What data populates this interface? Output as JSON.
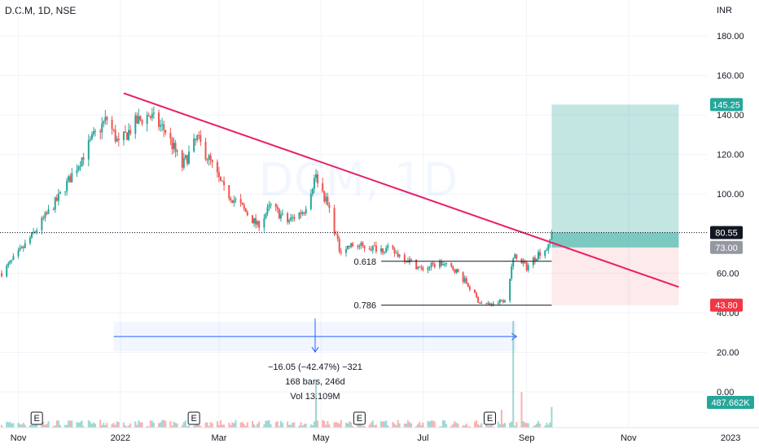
{
  "header": {
    "symbol_line": "D.C.M, 1D, NSE"
  },
  "watermark": "DCM, 1D",
  "currency_label": "INR",
  "colors": {
    "up": "#26a69a",
    "down": "#ef5350",
    "trendline": "#e91e63",
    "target_zone": "#26a69a",
    "stop_zone": "#ef5350",
    "measure": "#2962ff"
  },
  "chart_data": {
    "type": "candlestick",
    "interval": "1D",
    "exchange": "NSE",
    "ylim": [
      0,
      195
    ],
    "y_ticks": [
      180.0,
      160.0,
      140.0,
      120.0,
      100.0,
      80.0,
      60.0,
      40.0,
      20.0,
      0.0
    ],
    "y_tick_labels": [
      "180.00",
      "160.00",
      "140.00",
      "120.00",
      "100.00",
      "80.00",
      "60.00",
      "40.00",
      "20.00",
      "0.00"
    ],
    "x_ticks": [
      {
        "label": "Nov",
        "date": "2021-11-01"
      },
      {
        "label": "2022",
        "date": "2022-01-01"
      },
      {
        "label": "Mar",
        "date": "2022-03-01"
      },
      {
        "label": "May",
        "date": "2022-05-01"
      },
      {
        "label": "Jul",
        "date": "2022-07-01"
      },
      {
        "label": "Sep",
        "date": "2022-09-01"
      },
      {
        "label": "Nov",
        "date": "2022-11-01"
      },
      {
        "label": "2023",
        "date": "2023-01-01"
      }
    ],
    "x_range": [
      "2021-10-21",
      "2023-01-18"
    ],
    "price_path": [
      [
        "2021-10-22",
        60
      ],
      [
        "2021-10-28",
        66
      ],
      [
        "2021-11-04",
        73
      ],
      [
        "2021-11-15",
        86
      ],
      [
        "2021-11-25",
        98
      ],
      [
        "2021-12-06",
        114
      ],
      [
        "2021-12-16",
        129
      ],
      [
        "2021-12-24",
        138
      ],
      [
        "2021-12-31",
        125
      ],
      [
        "2022-01-10",
        136
      ],
      [
        "2022-01-18",
        140
      ],
      [
        "2022-01-28",
        132
      ],
      [
        "2022-02-07",
        114
      ],
      [
        "2022-02-16",
        128
      ],
      [
        "2022-02-24",
        116
      ],
      [
        "2022-03-04",
        102
      ],
      [
        "2022-03-14",
        94
      ],
      [
        "2022-03-24",
        84
      ],
      [
        "2022-04-01",
        94
      ],
      [
        "2022-04-11",
        86
      ],
      [
        "2022-04-21",
        92
      ],
      [
        "2022-04-28",
        110
      ],
      [
        "2022-05-06",
        92
      ],
      [
        "2022-05-12",
        72
      ],
      [
        "2022-05-20",
        74
      ],
      [
        "2022-05-31",
        73
      ],
      [
        "2022-06-10",
        72
      ],
      [
        "2022-06-20",
        68
      ],
      [
        "2022-06-30",
        62
      ],
      [
        "2022-07-11",
        65
      ],
      [
        "2022-07-20",
        62
      ],
      [
        "2022-07-27",
        55
      ],
      [
        "2022-08-04",
        45
      ],
      [
        "2022-08-12",
        44
      ],
      [
        "2022-08-19",
        47
      ],
      [
        "2022-08-25",
        70
      ],
      [
        "2022-09-01",
        63
      ],
      [
        "2022-09-08",
        70
      ],
      [
        "2022-09-14",
        73
      ],
      [
        "2022-09-16",
        80.55
      ]
    ],
    "ohlc_note": "Daily candles from ~Oct 2021 to mid Sep 2022; peak near 145 in Jan 2022, low near 43.8 in Aug 2022.",
    "last_price": 80.55,
    "last_volume_label": "487.662K",
    "volume_max": 36,
    "volume_spikes": [
      {
        "date": "2022-04-28",
        "value": 16
      },
      {
        "date": "2022-08-17",
        "value": 6
      },
      {
        "date": "2022-08-24",
        "value": 36
      },
      {
        "date": "2022-08-29",
        "value": 12
      },
      {
        "date": "2022-09-16",
        "value": 7
      }
    ],
    "earnings_markers": [
      "2021-11-12",
      "2022-02-14",
      "2022-05-24",
      "2022-08-10"
    ],
    "earnings_label": "E",
    "trendline": {
      "from": {
        "date": "2022-01-03",
        "price": 151
      },
      "to": {
        "date": "2022-12-01",
        "price": 53
      }
    },
    "fib_levels": [
      {
        "label": "0.618",
        "price": 66,
        "from": "2022-06-06",
        "to": "2022-09-16"
      },
      {
        "label": "0.786",
        "price": 43.8,
        "from": "2022-06-06",
        "to": "2022-09-16"
      }
    ],
    "position": {
      "entry": 73.0,
      "target": 145.25,
      "stop": 43.8,
      "from_date": "2022-09-16",
      "to_date": "2022-12-01"
    },
    "price_badges": [
      {
        "text": "145.25",
        "price": 145.25,
        "style": "target"
      },
      {
        "text": "80.55",
        "price": 80.55,
        "style": "last"
      },
      {
        "text": "73.00",
        "price": 73.0,
        "style": "entry"
      },
      {
        "text": "43.80",
        "price": 43.8,
        "style": "stop"
      }
    ],
    "measure": {
      "from_date": "2021-12-28",
      "to_date": "2022-08-26",
      "price": 30,
      "line1": "−16.05 (−42.47%) −321",
      "line2": "168 bars, 246d",
      "line3": "Vol 13.109M"
    }
  }
}
